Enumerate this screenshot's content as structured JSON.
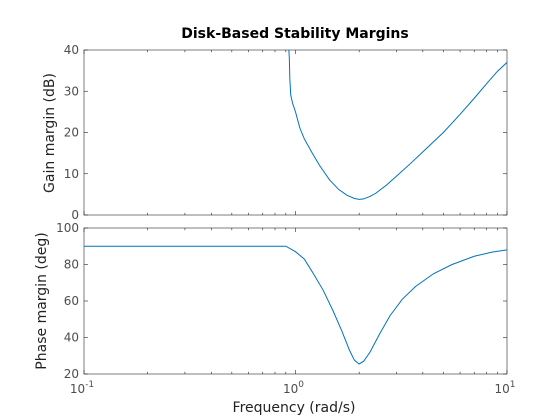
{
  "chart_data": {
    "type": "line",
    "title": "Disk-Based Stability Margins",
    "xlabel": "Frequency (rad/s)",
    "x_scale": "log",
    "xlim": [
      0.1,
      10
    ],
    "x_ticks": [
      {
        "base": "10",
        "exp": "-1"
      },
      {
        "base": "10",
        "exp": "0"
      },
      {
        "base": "10",
        "exp": "1"
      }
    ],
    "line_color": "#0072BD",
    "panels": [
      {
        "ylabel": "Gain margin (dB)",
        "ylim": [
          0,
          40
        ],
        "yticks": [
          0,
          10,
          20,
          30,
          40
        ],
        "series": [
          {
            "x": [
              0.93,
              0.935,
              0.94,
              0.95,
              0.97,
              1.0,
              1.05,
              1.1,
              1.2,
              1.3,
              1.45,
              1.6,
              1.75,
              1.9,
              2.0,
              2.1,
              2.25,
              2.4,
              2.7,
              3.0,
              3.5,
              4.0,
              5.0,
              6.0,
              7.0,
              8.0,
              9.0,
              10.0
            ],
            "y": [
              40,
              38,
              33,
              29,
              27,
              25,
              21,
              18.5,
              15,
              12,
              8.5,
              6.2,
              4.8,
              4.0,
              3.8,
              3.9,
              4.5,
              5.3,
              7.3,
              9.4,
              12.5,
              15.3,
              20.0,
              24.4,
              28.3,
              31.8,
              34.8,
              37.0
            ]
          }
        ]
      },
      {
        "ylabel": "Phase margin (deg)",
        "ylim": [
          20,
          100
        ],
        "yticks": [
          20,
          40,
          60,
          80,
          100
        ],
        "series": [
          {
            "x": [
              0.1,
              0.3,
              0.6,
              0.9,
              1.0,
              1.1,
              1.2,
              1.35,
              1.5,
              1.65,
              1.8,
              1.9,
              2.0,
              2.1,
              2.25,
              2.5,
              2.8,
              3.2,
              3.7,
              4.5,
              5.5,
              7.0,
              8.5,
              10.0
            ],
            "y": [
              90,
              90,
              90,
              90,
              87,
              83,
              76,
              66,
              55,
              44,
              33,
              27.5,
              25.5,
              27,
              32,
              42,
              52,
              61,
              68,
              75,
              80,
              84.5,
              86.8,
              88
            ]
          }
        ]
      }
    ]
  }
}
